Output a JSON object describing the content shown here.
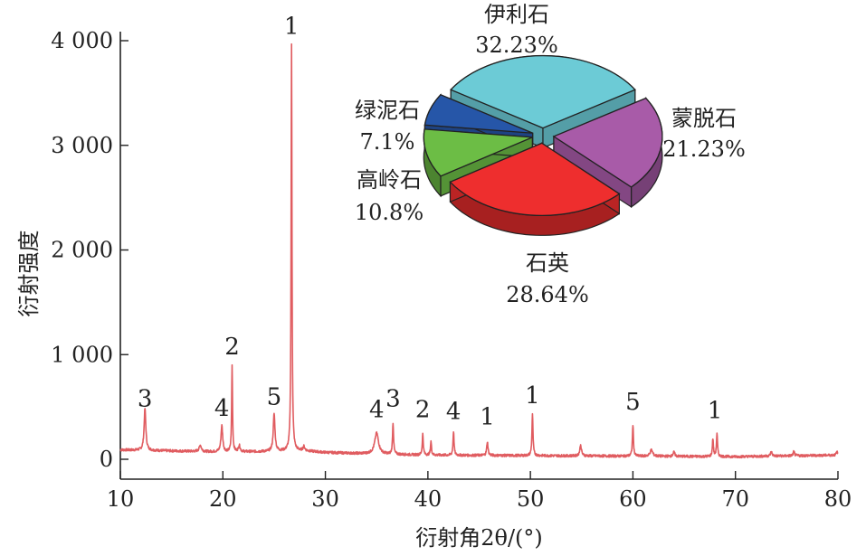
{
  "chart_data": [
    {
      "type": "line",
      "xlabel": "衍射角2θ/(°)",
      "ylabel": "衍射强度",
      "xlim": [
        10,
        80
      ],
      "ylim": [
        -200,
        4200
      ],
      "x_ticks": [
        10,
        20,
        30,
        40,
        50,
        60,
        70,
        80
      ],
      "x_tick_labels": [
        "10",
        "20",
        "30",
        "40",
        "50",
        "60",
        "70",
        "80"
      ],
      "y_ticks": [
        0,
        1000,
        2000,
        3000,
        4000
      ],
      "y_tick_labels": [
        "0",
        "1 000",
        "2 000",
        "3 000",
        "4 000"
      ],
      "grid": false,
      "color": "#e05c60",
      "baseline": [
        [
          10,
          90
        ],
        [
          15,
          80
        ],
        [
          20,
          70
        ],
        [
          25,
          75
        ],
        [
          28,
          80
        ],
        [
          30,
          65
        ],
        [
          35,
          50
        ],
        [
          40,
          40
        ],
        [
          50,
          35
        ],
        [
          60,
          30
        ],
        [
          70,
          25
        ],
        [
          80,
          40
        ]
      ],
      "peaks": [
        {
          "x": 12.4,
          "height": 400,
          "width": 0.2
        },
        {
          "x": 17.8,
          "height": 60,
          "width": 0.25
        },
        {
          "x": 19.9,
          "height": 250,
          "width": 0.2
        },
        {
          "x": 20.9,
          "height": 830,
          "width": 0.1
        },
        {
          "x": 21.6,
          "height": 60,
          "width": 0.2
        },
        {
          "x": 25.0,
          "height": 360,
          "width": 0.2
        },
        {
          "x": 26.7,
          "height": 3880,
          "width": 0.1
        },
        {
          "x": 27.9,
          "height": 40,
          "width": 0.2
        },
        {
          "x": 35.0,
          "height": 200,
          "width": 0.45
        },
        {
          "x": 36.6,
          "height": 300,
          "width": 0.12
        },
        {
          "x": 39.5,
          "height": 200,
          "width": 0.12
        },
        {
          "x": 40.3,
          "height": 130,
          "width": 0.12
        },
        {
          "x": 42.5,
          "height": 230,
          "width": 0.12
        },
        {
          "x": 45.8,
          "height": 130,
          "width": 0.15
        },
        {
          "x": 50.2,
          "height": 400,
          "width": 0.12
        },
        {
          "x": 54.9,
          "height": 100,
          "width": 0.2
        },
        {
          "x": 60.0,
          "height": 300,
          "width": 0.12
        },
        {
          "x": 61.8,
          "height": 60,
          "width": 0.3
        },
        {
          "x": 64.0,
          "height": 40,
          "width": 0.2
        },
        {
          "x": 67.8,
          "height": 170,
          "width": 0.12
        },
        {
          "x": 68.2,
          "height": 220,
          "width": 0.12
        },
        {
          "x": 73.5,
          "height": 40,
          "width": 0.2
        },
        {
          "x": 75.7,
          "height": 40,
          "width": 0.15
        },
        {
          "x": 79.9,
          "height": 30,
          "width": 0.15
        }
      ],
      "peak_labels": [
        {
          "text": "3",
          "x": 12.4,
          "y": 400
        },
        {
          "text": "4",
          "x": 19.9,
          "y": 310
        },
        {
          "text": "2",
          "x": 20.9,
          "y": 900
        },
        {
          "text": "5",
          "x": 25.0,
          "y": 420
        },
        {
          "text": "1",
          "x": 26.7,
          "y": 3960
        },
        {
          "text": "4",
          "x": 35.0,
          "y": 300
        },
        {
          "text": "3",
          "x": 36.6,
          "y": 400
        },
        {
          "text": "2",
          "x": 39.5,
          "y": 300
        },
        {
          "text": "4",
          "x": 42.5,
          "y": 280
        },
        {
          "text": "1",
          "x": 45.8,
          "y": 230
        },
        {
          "text": "1",
          "x": 50.2,
          "y": 430
        },
        {
          "text": "5",
          "x": 60.0,
          "y": 370
        },
        {
          "text": "1",
          "x": 68.0,
          "y": 290
        }
      ]
    },
    {
      "type": "pie",
      "style": "3d-exploded",
      "slices": [
        {
          "label": "伊利石",
          "value": 32.23,
          "pct_text": "32.23%",
          "color": "#6ccbd6"
        },
        {
          "label": "蒙脱石",
          "value": 21.23,
          "pct_text": "21.23%",
          "color": "#a85ba8"
        },
        {
          "label": "石英",
          "value": 28.64,
          "pct_text": "28.64%",
          "color": "#ee2e2e"
        },
        {
          "label": "高岭石",
          "value": 10.8,
          "pct_text": "10.8%",
          "color": "#6cbd45"
        },
        {
          "label": "绿泥石",
          "value": 7.1,
          "pct_text": "7.1%",
          "color": "#2656a8"
        }
      ]
    }
  ]
}
